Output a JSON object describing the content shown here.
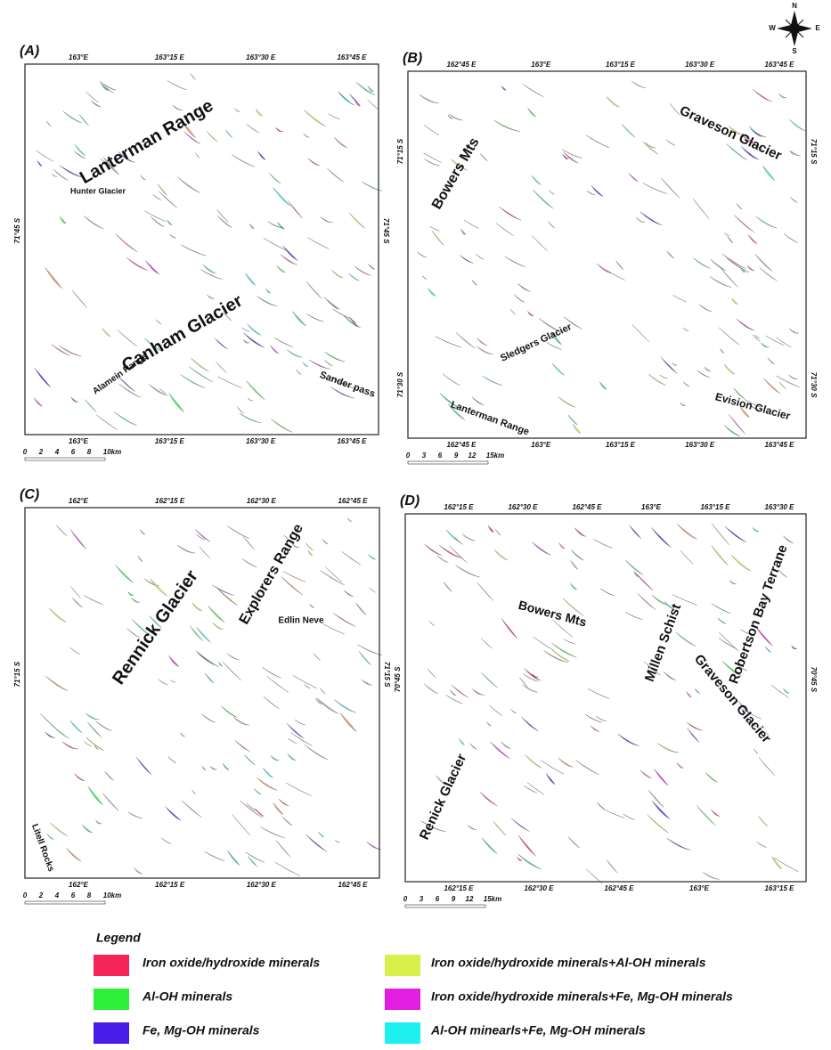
{
  "compass": {
    "n": "N",
    "w": "W",
    "e": "E",
    "s": "S"
  },
  "panels": [
    {
      "label": "(A)",
      "top_ticks": [
        "163°E",
        "163°15 E",
        "163°30 E",
        "163°45 E"
      ],
      "bottom_ticks": [
        "163°E",
        "163°15 E",
        "163°30 E",
        "163°45 E"
      ],
      "left_ticks": [
        "71°45 S"
      ],
      "right_ticks": [
        "71°45 S"
      ],
      "places": [
        "Lanterman Range",
        "Hunter Glacier",
        "Canham Glacier",
        "Alamein Range",
        "Sander pass"
      ],
      "scale": [
        "0",
        "2",
        "4",
        "6",
        "8",
        "10km"
      ]
    },
    {
      "label": "(B)",
      "top_ticks": [
        "162°45 E",
        "163°E",
        "163°15 E",
        "163°30 E",
        "163°45 E"
      ],
      "bottom_ticks": [
        "162°45 E",
        "163°E",
        "163°15 E",
        "163°30 E",
        "163°45 E"
      ],
      "left_ticks": [
        "71°15 S",
        "71°30 S"
      ],
      "right_ticks": [
        "71°15 S",
        "71°30 S"
      ],
      "places": [
        "Graveson Glacier",
        "Bowers Mts",
        "Sledgers Glacier",
        "Lanterman Range",
        "Evision Glacier"
      ],
      "scale": [
        "0",
        "3",
        "6",
        "9",
        "12",
        "15km"
      ]
    },
    {
      "label": "(C)",
      "top_ticks": [
        "162°E",
        "162°15 E",
        "162°30 E",
        "162°45 E"
      ],
      "bottom_ticks": [
        "162°E",
        "162°15 E",
        "162°30 E",
        "162°45 E"
      ],
      "left_ticks": [
        "71°15 S"
      ],
      "right_ticks": [
        "71°15 S"
      ],
      "places": [
        "Rennick Glacier",
        "Explorers Range",
        "Edlin Neve",
        "Litell Rocks"
      ],
      "scale": [
        "0",
        "2",
        "4",
        "6",
        "8",
        "10km"
      ]
    },
    {
      "label": "(D)",
      "top_ticks": [
        "162°15 E",
        "162°30 E",
        "162°45 E",
        "163°E",
        "163°15 E",
        "163°30 E"
      ],
      "bottom_ticks": [
        "162°15 E",
        "162°30 E",
        "162°45 E",
        "163°E",
        "163°15 E"
      ],
      "left_ticks": [
        "70°45 S"
      ],
      "right_ticks": [
        "70°45 S"
      ],
      "places": [
        "Robertson Bay Terrane",
        "Bowers Mts",
        "Millen Schist",
        "Graveson Glacier",
        "Renick Glacier"
      ],
      "scale": [
        "0",
        "3",
        "6",
        "9",
        "12",
        "15km"
      ]
    }
  ],
  "legend": {
    "title": "Legend",
    "items": [
      {
        "label": "Iron oxide/hydroxide minerals",
        "color": "#f5245a"
      },
      {
        "label": "Al-OH minerals",
        "color": "#2ef03a"
      },
      {
        "label": "Fe, Mg-OH minerals",
        "color": "#4a1ce8"
      },
      {
        "label": "Iron oxide/hydroxide minerals+Al-OH minerals",
        "color": "#d9ef4a"
      },
      {
        "label": "Iron oxide/hydroxide minerals+Fe, Mg-OH minerals",
        "color": "#e21ee0"
      },
      {
        "label": "Al-OH minearls+Fe, Mg-OH minerals",
        "color": "#1ef0f0"
      }
    ]
  }
}
